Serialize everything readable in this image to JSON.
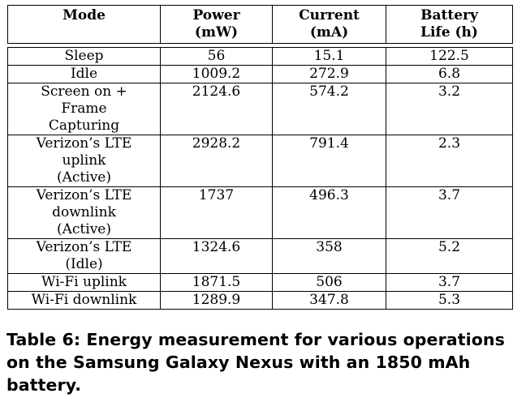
{
  "table": {
    "headers": [
      "Mode",
      "Power\n(mW)",
      "Current\n(mA)",
      "Battery\nLife (h)"
    ],
    "rows": [
      [
        "Sleep",
        "56",
        "15.1",
        "122.5"
      ],
      [
        "Idle",
        "1009.2",
        "272.9",
        "6.8"
      ],
      [
        "Screen on +\nFrame\nCapturing",
        "2124.6",
        "574.2",
        "3.2"
      ],
      [
        "Verizon’s LTE\nuplink\n(Active)",
        "2928.2",
        "791.4",
        "2.3"
      ],
      [
        "Verizon’s LTE\ndownlink\n(Active)",
        "1737",
        "496.3",
        "3.7"
      ],
      [
        "Verizon’s LTE\n(Idle)",
        "1324.6",
        "358",
        "5.2"
      ],
      [
        "Wi-Fi uplink",
        "1871.5",
        "506",
        "3.7"
      ],
      [
        "Wi-Fi downlink",
        "1289.9",
        "347.8",
        "5.3"
      ]
    ]
  },
  "caption": "Table 6: Energy measurement for various operations on the Samsung Galaxy Nexus with an 1850 mAh battery."
}
